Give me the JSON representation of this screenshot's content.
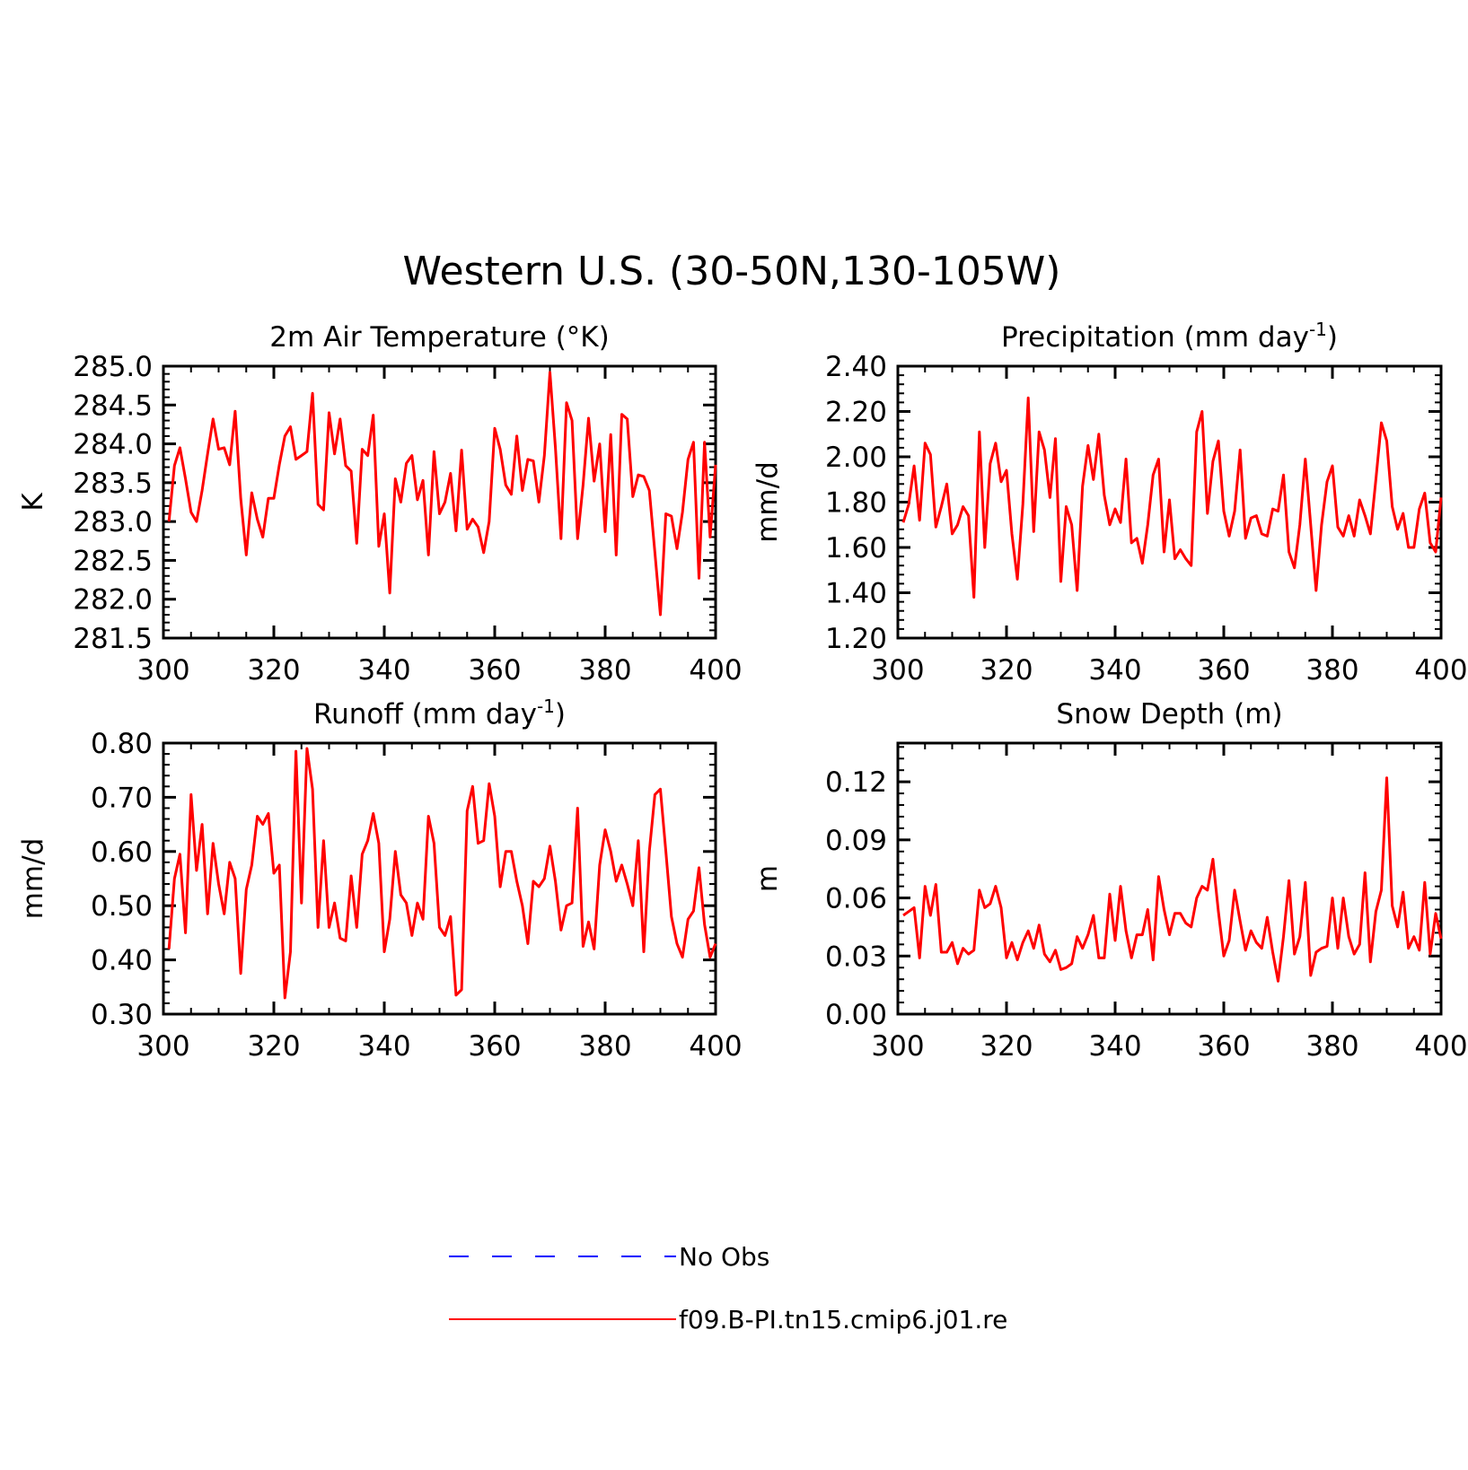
{
  "title": "Western U.S. (30-50N,130-105W)",
  "colors": {
    "model": "#ff0000",
    "obs": "#0000ff",
    "axis": "#000000"
  },
  "legend": {
    "items": [
      {
        "label": "No Obs",
        "style": "dashed",
        "color": "#0000ff"
      },
      {
        "label": "f09.B-PI.tn15.cmip6.j01.re",
        "style": "solid",
        "color": "#ff0000"
      }
    ]
  },
  "chart_data": [
    {
      "type": "line",
      "title": "2m Air Temperature (°K)",
      "xlabel": "",
      "ylabel": "K",
      "xlim": [
        300,
        400
      ],
      "ylim": [
        281.5,
        285.0
      ],
      "xticks": [
        300,
        320,
        340,
        360,
        380,
        400
      ],
      "yticks": [
        "281.5",
        "282.0",
        "282.5",
        "283.0",
        "283.5",
        "284.0",
        "284.5",
        "285.0"
      ],
      "x_start": 301,
      "x_step": 1,
      "series": [
        {
          "name": "f09.B-PI.tn15.cmip6.j01.re",
          "values": [
            283.0,
            283.72,
            283.95,
            283.55,
            283.12,
            283.0,
            283.4,
            283.87,
            284.32,
            283.93,
            283.95,
            283.73,
            284.42,
            283.3,
            282.57,
            283.37,
            283.03,
            282.8,
            283.3,
            283.3,
            283.73,
            284.1,
            284.22,
            283.8,
            283.85,
            283.9,
            284.65,
            283.22,
            283.15,
            284.4,
            283.87,
            284.32,
            283.72,
            283.65,
            282.72,
            283.93,
            283.85,
            284.37,
            282.68,
            283.1,
            282.08,
            283.55,
            283.25,
            283.75,
            283.85,
            283.28,
            283.53,
            282.57,
            283.9,
            283.1,
            283.25,
            283.62,
            282.88,
            283.92,
            282.9,
            283.03,
            282.93,
            282.6,
            283.0,
            284.2,
            283.93,
            283.47,
            283.35,
            284.1,
            283.4,
            283.8,
            283.78,
            283.25,
            283.85,
            284.92,
            283.95,
            282.78,
            284.53,
            284.3,
            282.78,
            283.47,
            284.33,
            283.52,
            284.0,
            282.87,
            284.12,
            282.57,
            284.38,
            284.32,
            283.32,
            283.6,
            283.58,
            283.4,
            282.6,
            281.8,
            283.1,
            283.07,
            282.65,
            283.12,
            283.8,
            284.02,
            282.27,
            284.02,
            282.8,
            283.73
          ]
        }
      ]
    },
    {
      "type": "line",
      "title": "Precipitation (mm day",
      "title_sup": "-1",
      "title_end": ")",
      "xlabel": "",
      "ylabel": "mm/d",
      "xlim": [
        300,
        400
      ],
      "ylim": [
        1.2,
        2.4
      ],
      "xticks": [
        300,
        320,
        340,
        360,
        380,
        400
      ],
      "yticks": [
        "1.20",
        "1.40",
        "1.60",
        "1.80",
        "2.00",
        "2.20",
        "2.40"
      ],
      "x_start": 301,
      "x_step": 1,
      "series": [
        {
          "name": "f09.B-PI.tn15.cmip6.j01.re",
          "values": [
            1.71,
            1.79,
            1.96,
            1.72,
            2.06,
            2.01,
            1.69,
            1.78,
            1.88,
            1.66,
            1.7,
            1.78,
            1.74,
            1.38,
            2.11,
            1.6,
            1.97,
            2.06,
            1.89,
            1.94,
            1.66,
            1.46,
            1.79,
            2.26,
            1.67,
            2.11,
            2.03,
            1.82,
            2.08,
            1.45,
            1.78,
            1.7,
            1.41,
            1.87,
            2.05,
            1.9,
            2.1,
            1.83,
            1.7,
            1.77,
            1.71,
            1.99,
            1.62,
            1.64,
            1.53,
            1.7,
            1.92,
            1.99,
            1.58,
            1.81,
            1.55,
            1.59,
            1.55,
            1.52,
            2.11,
            2.2,
            1.75,
            1.98,
            2.07,
            1.76,
            1.65,
            1.76,
            2.03,
            1.64,
            1.73,
            1.74,
            1.66,
            1.65,
            1.77,
            1.76,
            1.92,
            1.58,
            1.51,
            1.7,
            1.99,
            1.7,
            1.41,
            1.7,
            1.89,
            1.96,
            1.69,
            1.65,
            1.74,
            1.65,
            1.81,
            1.74,
            1.66,
            1.9,
            2.15,
            2.07,
            1.78,
            1.68,
            1.75,
            1.6,
            1.6,
            1.77,
            1.84,
            1.62,
            1.58,
            1.82
          ]
        }
      ]
    },
    {
      "type": "line",
      "title": "Runoff (mm day",
      "title_sup": "-1",
      "title_end": ")",
      "xlabel": "",
      "ylabel": "mm/d",
      "xlim": [
        300,
        400
      ],
      "ylim": [
        0.3,
        0.8
      ],
      "xticks": [
        300,
        320,
        340,
        360,
        380,
        400
      ],
      "yticks": [
        "0.30",
        "0.40",
        "0.50",
        "0.60",
        "0.70",
        "0.80"
      ],
      "x_start": 301,
      "x_step": 1,
      "series": [
        {
          "name": "f09.B-PI.tn15.cmip6.j01.re",
          "values": [
            0.42,
            0.55,
            0.595,
            0.45,
            0.705,
            0.565,
            0.65,
            0.485,
            0.615,
            0.54,
            0.485,
            0.58,
            0.55,
            0.375,
            0.53,
            0.575,
            0.665,
            0.65,
            0.67,
            0.56,
            0.575,
            0.33,
            0.415,
            0.785,
            0.505,
            0.79,
            0.715,
            0.46,
            0.62,
            0.46,
            0.505,
            0.44,
            0.435,
            0.555,
            0.46,
            0.595,
            0.62,
            0.67,
            0.615,
            0.415,
            0.475,
            0.6,
            0.52,
            0.505,
            0.445,
            0.505,
            0.475,
            0.665,
            0.615,
            0.46,
            0.445,
            0.48,
            0.335,
            0.345,
            0.675,
            0.72,
            0.615,
            0.62,
            0.725,
            0.665,
            0.535,
            0.6,
            0.6,
            0.545,
            0.5,
            0.43,
            0.545,
            0.535,
            0.55,
            0.61,
            0.545,
            0.455,
            0.5,
            0.505,
            0.68,
            0.425,
            0.47,
            0.42,
            0.575,
            0.64,
            0.6,
            0.545,
            0.575,
            0.54,
            0.5,
            0.62,
            0.415,
            0.6,
            0.705,
            0.715,
            0.6,
            0.48,
            0.43,
            0.405,
            0.475,
            0.49,
            0.57,
            0.465,
            0.405,
            0.43
          ]
        }
      ]
    },
    {
      "type": "line",
      "title": "Snow Depth (m)",
      "xlabel": "",
      "ylabel": "m",
      "xlim": [
        300,
        400
      ],
      "ylim": [
        0.0,
        0.14
      ],
      "xticks": [
        300,
        320,
        340,
        360,
        380,
        400
      ],
      "yticks": [
        "0.00",
        "0.03",
        "0.06",
        "0.09",
        "0.12"
      ],
      "x_start": 301,
      "x_step": 1,
      "series": [
        {
          "name": "f09.B-PI.tn15.cmip6.j01.re",
          "values": [
            0.051,
            0.053,
            0.055,
            0.029,
            0.066,
            0.051,
            0.067,
            0.032,
            0.032,
            0.037,
            0.026,
            0.034,
            0.031,
            0.033,
            0.064,
            0.055,
            0.057,
            0.066,
            0.055,
            0.029,
            0.037,
            0.028,
            0.037,
            0.043,
            0.034,
            0.046,
            0.031,
            0.027,
            0.033,
            0.023,
            0.024,
            0.026,
            0.04,
            0.034,
            0.041,
            0.051,
            0.029,
            0.029,
            0.062,
            0.038,
            0.066,
            0.043,
            0.029,
            0.041,
            0.041,
            0.054,
            0.028,
            0.071,
            0.054,
            0.041,
            0.052,
            0.052,
            0.047,
            0.045,
            0.06,
            0.066,
            0.064,
            0.08,
            0.053,
            0.03,
            0.038,
            0.064,
            0.048,
            0.033,
            0.043,
            0.037,
            0.034,
            0.05,
            0.032,
            0.017,
            0.04,
            0.069,
            0.031,
            0.04,
            0.068,
            0.02,
            0.032,
            0.034,
            0.035,
            0.06,
            0.034,
            0.06,
            0.04,
            0.031,
            0.036,
            0.073,
            0.027,
            0.053,
            0.064,
            0.122,
            0.056,
            0.045,
            0.063,
            0.034,
            0.04,
            0.033,
            0.068,
            0.031,
            0.052,
            0.039
          ]
        }
      ]
    }
  ]
}
